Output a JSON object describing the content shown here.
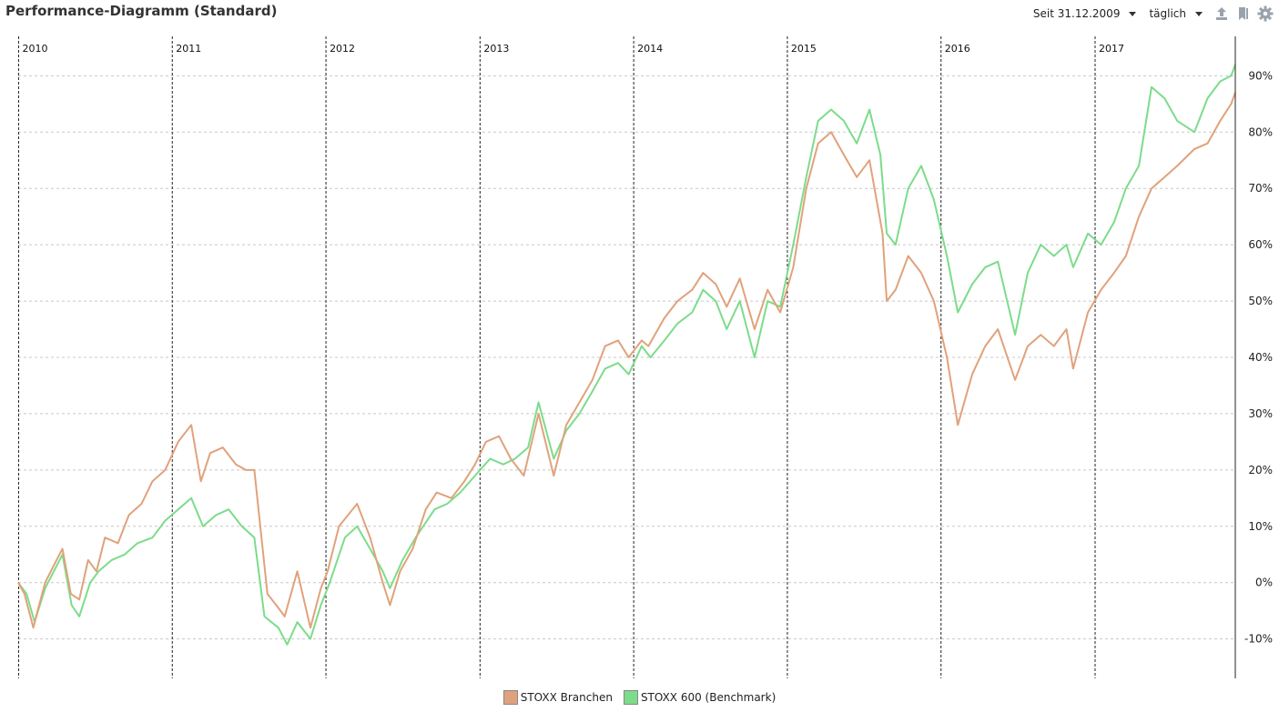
{
  "header": {
    "title": "Performance-Diagramm (Standard)",
    "since_label": "Seit 31.12.2009",
    "period_label": "täglich",
    "icons": [
      "export-icon",
      "bookmark-icon",
      "gear-icon"
    ]
  },
  "chart_data": {
    "type": "line",
    "title": "Performance-Diagramm (Standard)",
    "x_range": [
      "2009-12-31",
      "2017-11-30"
    ],
    "year_labels": [
      "2010",
      "2011",
      "2012",
      "2013",
      "2014",
      "2015",
      "2016",
      "2017"
    ],
    "y_ticks": [
      "90%",
      "80%",
      "70%",
      "60%",
      "50%",
      "40%",
      "30%",
      "20%",
      "10%",
      "0%",
      "-10%"
    ],
    "ylim": [
      -17,
      97
    ],
    "grid": true,
    "legend_position": "bottom-center",
    "series": [
      {
        "name": "STOXX Branchen",
        "color": "#e0a27c",
        "points": [
          [
            "2009-12-31",
            0
          ],
          [
            "2010-01-15",
            -2
          ],
          [
            "2010-02-05",
            -8
          ],
          [
            "2010-02-15",
            -5
          ],
          [
            "2010-03-05",
            0
          ],
          [
            "2010-04-01",
            4
          ],
          [
            "2010-04-15",
            6
          ],
          [
            "2010-05-05",
            -2
          ],
          [
            "2010-05-25",
            -3
          ],
          [
            "2010-06-15",
            4
          ],
          [
            "2010-07-05",
            2
          ],
          [
            "2010-07-25",
            8
          ],
          [
            "2010-08-25",
            7
          ],
          [
            "2010-09-20",
            12
          ],
          [
            "2010-10-20",
            14
          ],
          [
            "2010-11-15",
            18
          ],
          [
            "2010-12-15",
            20
          ],
          [
            "2011-01-15",
            25
          ],
          [
            "2011-02-15",
            28
          ],
          [
            "2011-03-10",
            18
          ],
          [
            "2011-04-01",
            23
          ],
          [
            "2011-05-01",
            24
          ],
          [
            "2011-06-01",
            21
          ],
          [
            "2011-06-25",
            20
          ],
          [
            "2011-07-15",
            20
          ],
          [
            "2011-08-05",
            5
          ],
          [
            "2011-08-15",
            -2
          ],
          [
            "2011-09-05",
            -4
          ],
          [
            "2011-09-25",
            -6
          ],
          [
            "2011-10-25",
            2
          ],
          [
            "2011-11-25",
            -8
          ],
          [
            "2011-12-20",
            -1
          ],
          [
            "2012-01-05",
            2
          ],
          [
            "2012-02-01",
            10
          ],
          [
            "2012-03-15",
            14
          ],
          [
            "2012-04-15",
            8
          ],
          [
            "2012-05-15",
            0
          ],
          [
            "2012-06-01",
            -4
          ],
          [
            "2012-06-25",
            2
          ],
          [
            "2012-07-25",
            6
          ],
          [
            "2012-08-25",
            13
          ],
          [
            "2012-09-20",
            16
          ],
          [
            "2012-10-25",
            15
          ],
          [
            "2012-11-25",
            18
          ],
          [
            "2012-12-20",
            21
          ],
          [
            "2013-01-15",
            25
          ],
          [
            "2013-02-15",
            26
          ],
          [
            "2013-03-15",
            22
          ],
          [
            "2013-04-15",
            19
          ],
          [
            "2013-05-20",
            30
          ],
          [
            "2013-06-25",
            19
          ],
          [
            "2013-07-25",
            28
          ],
          [
            "2013-08-25",
            32
          ],
          [
            "2013-09-25",
            36
          ],
          [
            "2013-10-25",
            42
          ],
          [
            "2013-11-25",
            43
          ],
          [
            "2013-12-20",
            40
          ],
          [
            "2014-01-20",
            43
          ],
          [
            "2014-02-05",
            42
          ],
          [
            "2014-03-15",
            47
          ],
          [
            "2014-04-15",
            50
          ],
          [
            "2014-05-20",
            52
          ],
          [
            "2014-06-15",
            55
          ],
          [
            "2014-07-15",
            53
          ],
          [
            "2014-08-10",
            49
          ],
          [
            "2014-09-10",
            54
          ],
          [
            "2014-10-15",
            45
          ],
          [
            "2014-11-15",
            52
          ],
          [
            "2014-12-15",
            48
          ],
          [
            "2015-01-15",
            56
          ],
          [
            "2015-02-15",
            70
          ],
          [
            "2015-03-15",
            78
          ],
          [
            "2015-04-15",
            80
          ],
          [
            "2015-05-15",
            76
          ],
          [
            "2015-06-15",
            72
          ],
          [
            "2015-07-15",
            75
          ],
          [
            "2015-08-15",
            62
          ],
          [
            "2015-08-25",
            50
          ],
          [
            "2015-09-15",
            52
          ],
          [
            "2015-10-15",
            58
          ],
          [
            "2015-11-15",
            55
          ],
          [
            "2015-12-15",
            50
          ],
          [
            "2016-01-15",
            40
          ],
          [
            "2016-02-10",
            28
          ],
          [
            "2016-03-15",
            37
          ],
          [
            "2016-04-15",
            42
          ],
          [
            "2016-05-15",
            45
          ],
          [
            "2016-06-25",
            36
          ],
          [
            "2016-07-25",
            42
          ],
          [
            "2016-08-25",
            44
          ],
          [
            "2016-09-25",
            42
          ],
          [
            "2016-10-25",
            45
          ],
          [
            "2016-11-10",
            38
          ],
          [
            "2016-12-15",
            48
          ],
          [
            "2017-01-15",
            52
          ],
          [
            "2017-02-15",
            55
          ],
          [
            "2017-03-15",
            58
          ],
          [
            "2017-04-15",
            65
          ],
          [
            "2017-05-15",
            70
          ],
          [
            "2017-06-15",
            72
          ],
          [
            "2017-07-15",
            74
          ],
          [
            "2017-08-25",
            77
          ],
          [
            "2017-09-25",
            78
          ],
          [
            "2017-10-25",
            82
          ],
          [
            "2017-11-20",
            85
          ],
          [
            "2017-11-30",
            87
          ]
        ]
      },
      {
        "name": "STOXX 600 (Benchmark)",
        "color": "#7cdc8a",
        "points": [
          [
            "2009-12-31",
            0
          ],
          [
            "2010-01-20",
            -2
          ],
          [
            "2010-02-08",
            -7
          ],
          [
            "2010-03-05",
            -1
          ],
          [
            "2010-04-15",
            5
          ],
          [
            "2010-05-07",
            -4
          ],
          [
            "2010-05-25",
            -6
          ],
          [
            "2010-06-20",
            0
          ],
          [
            "2010-07-10",
            2
          ],
          [
            "2010-08-10",
            4
          ],
          [
            "2010-09-10",
            5
          ],
          [
            "2010-10-10",
            7
          ],
          [
            "2010-11-15",
            8
          ],
          [
            "2010-12-15",
            11
          ],
          [
            "2011-01-15",
            13
          ],
          [
            "2011-02-15",
            15
          ],
          [
            "2011-03-15",
            10
          ],
          [
            "2011-04-15",
            12
          ],
          [
            "2011-05-15",
            13
          ],
          [
            "2011-06-15",
            10
          ],
          [
            "2011-07-15",
            8
          ],
          [
            "2011-08-08",
            -6
          ],
          [
            "2011-09-10",
            -8
          ],
          [
            "2011-10-01",
            -11
          ],
          [
            "2011-10-25",
            -7
          ],
          [
            "2011-11-25",
            -10
          ],
          [
            "2011-12-20",
            -4
          ],
          [
            "2012-01-10",
            0
          ],
          [
            "2012-02-15",
            8
          ],
          [
            "2012-03-15",
            10
          ],
          [
            "2012-04-15",
            6
          ],
          [
            "2012-05-15",
            2
          ],
          [
            "2012-06-01",
            -1
          ],
          [
            "2012-07-01",
            4
          ],
          [
            "2012-08-01",
            8
          ],
          [
            "2012-09-15",
            13
          ],
          [
            "2012-10-15",
            14
          ],
          [
            "2012-11-15",
            16
          ],
          [
            "2012-12-20",
            19
          ],
          [
            "2013-01-25",
            22
          ],
          [
            "2013-02-25",
            21
          ],
          [
            "2013-03-25",
            22
          ],
          [
            "2013-04-25",
            24
          ],
          [
            "2013-05-20",
            32
          ],
          [
            "2013-06-25",
            22
          ],
          [
            "2013-07-25",
            27
          ],
          [
            "2013-08-25",
            30
          ],
          [
            "2013-09-25",
            34
          ],
          [
            "2013-10-25",
            38
          ],
          [
            "2013-11-25",
            39
          ],
          [
            "2013-12-20",
            37
          ],
          [
            "2014-01-20",
            42
          ],
          [
            "2014-02-10",
            40
          ],
          [
            "2014-03-15",
            43
          ],
          [
            "2014-04-15",
            46
          ],
          [
            "2014-05-20",
            48
          ],
          [
            "2014-06-15",
            52
          ],
          [
            "2014-07-15",
            50
          ],
          [
            "2014-08-10",
            45
          ],
          [
            "2014-09-10",
            50
          ],
          [
            "2014-10-15",
            40
          ],
          [
            "2014-11-15",
            50
          ],
          [
            "2014-12-15",
            49
          ],
          [
            "2015-01-15",
            60
          ],
          [
            "2015-02-15",
            72
          ],
          [
            "2015-03-15",
            82
          ],
          [
            "2015-04-15",
            84
          ],
          [
            "2015-05-15",
            82
          ],
          [
            "2015-06-15",
            78
          ],
          [
            "2015-07-15",
            84
          ],
          [
            "2015-08-10",
            76
          ],
          [
            "2015-08-25",
            62
          ],
          [
            "2015-09-15",
            60
          ],
          [
            "2015-10-15",
            70
          ],
          [
            "2015-11-15",
            74
          ],
          [
            "2015-12-15",
            68
          ],
          [
            "2016-01-15",
            58
          ],
          [
            "2016-02-10",
            48
          ],
          [
            "2016-03-15",
            53
          ],
          [
            "2016-04-15",
            56
          ],
          [
            "2016-05-15",
            57
          ],
          [
            "2016-06-25",
            44
          ],
          [
            "2016-07-25",
            55
          ],
          [
            "2016-08-25",
            60
          ],
          [
            "2016-09-25",
            58
          ],
          [
            "2016-10-25",
            60
          ],
          [
            "2016-11-10",
            56
          ],
          [
            "2016-12-15",
            62
          ],
          [
            "2017-01-15",
            60
          ],
          [
            "2017-02-15",
            64
          ],
          [
            "2017-03-15",
            70
          ],
          [
            "2017-04-15",
            74
          ],
          [
            "2017-05-15",
            88
          ],
          [
            "2017-06-15",
            86
          ],
          [
            "2017-07-15",
            82
          ],
          [
            "2017-08-25",
            80
          ],
          [
            "2017-09-25",
            86
          ],
          [
            "2017-10-25",
            89
          ],
          [
            "2017-11-20",
            90
          ],
          [
            "2017-11-30",
            92
          ]
        ]
      }
    ]
  }
}
